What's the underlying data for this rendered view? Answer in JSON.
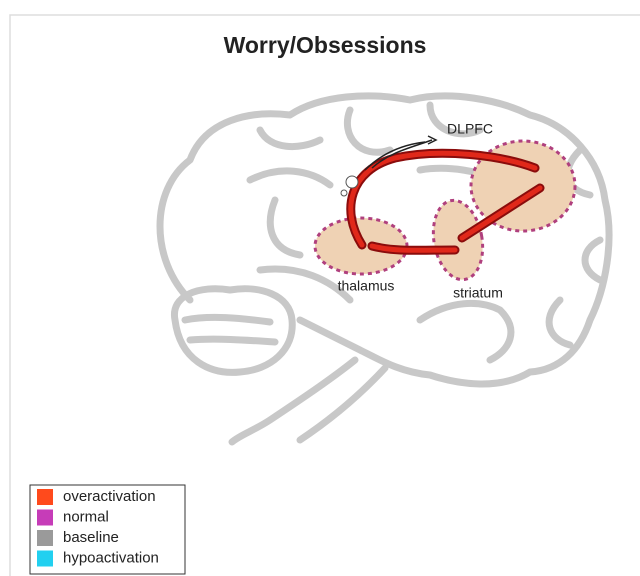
{
  "title": "Worry/Obsessions",
  "regions": [
    {
      "label": "DLPFC"
    },
    {
      "label": "thalamus"
    },
    {
      "label": "striatum"
    }
  ],
  "legend": [
    {
      "label": "overactivation",
      "color": "#ff4a1c"
    },
    {
      "label": "normal",
      "color": "#c63cb8"
    },
    {
      "label": "baseline",
      "color": "#9a9a9a"
    },
    {
      "label": "hypoactivation",
      "color": "#22d0f0"
    }
  ]
}
